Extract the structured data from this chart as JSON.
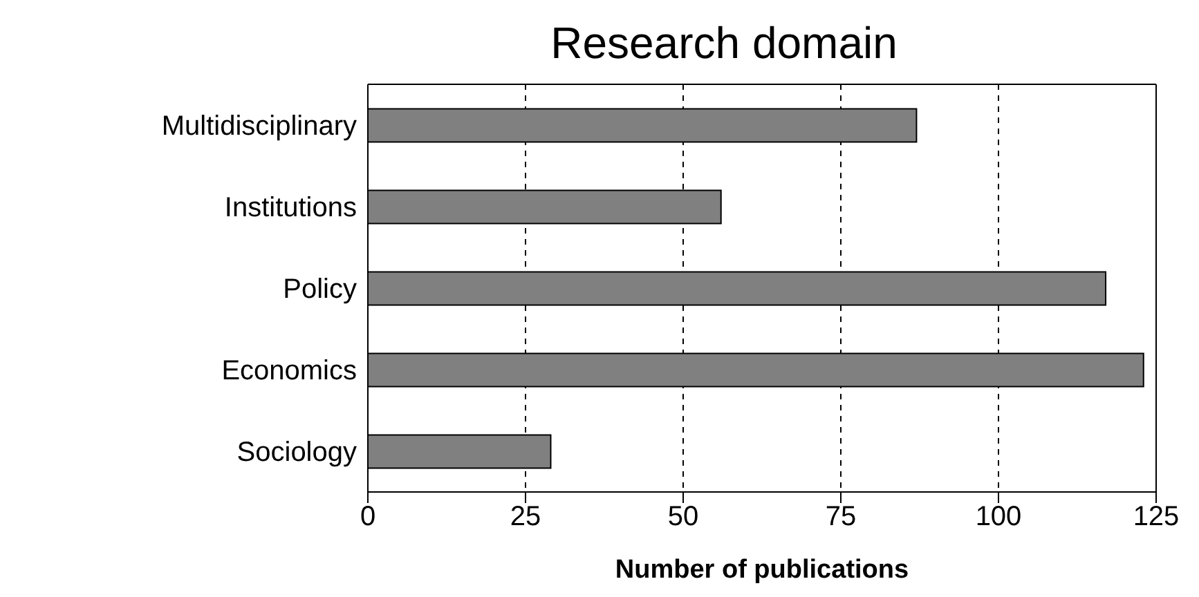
{
  "chart_data": {
    "type": "bar",
    "orientation": "horizontal",
    "title": "Research domain",
    "xlabel": "Number of publications",
    "categories": [
      "Multidisciplinary",
      "Institutions",
      "Policy",
      "Economics",
      "Sociology"
    ],
    "values": [
      87,
      56,
      117,
      123,
      29
    ],
    "color": "#808080",
    "xlim": [
      0,
      125
    ],
    "xticks": [
      0,
      25,
      50,
      75,
      100,
      125
    ],
    "grid": "x"
  }
}
